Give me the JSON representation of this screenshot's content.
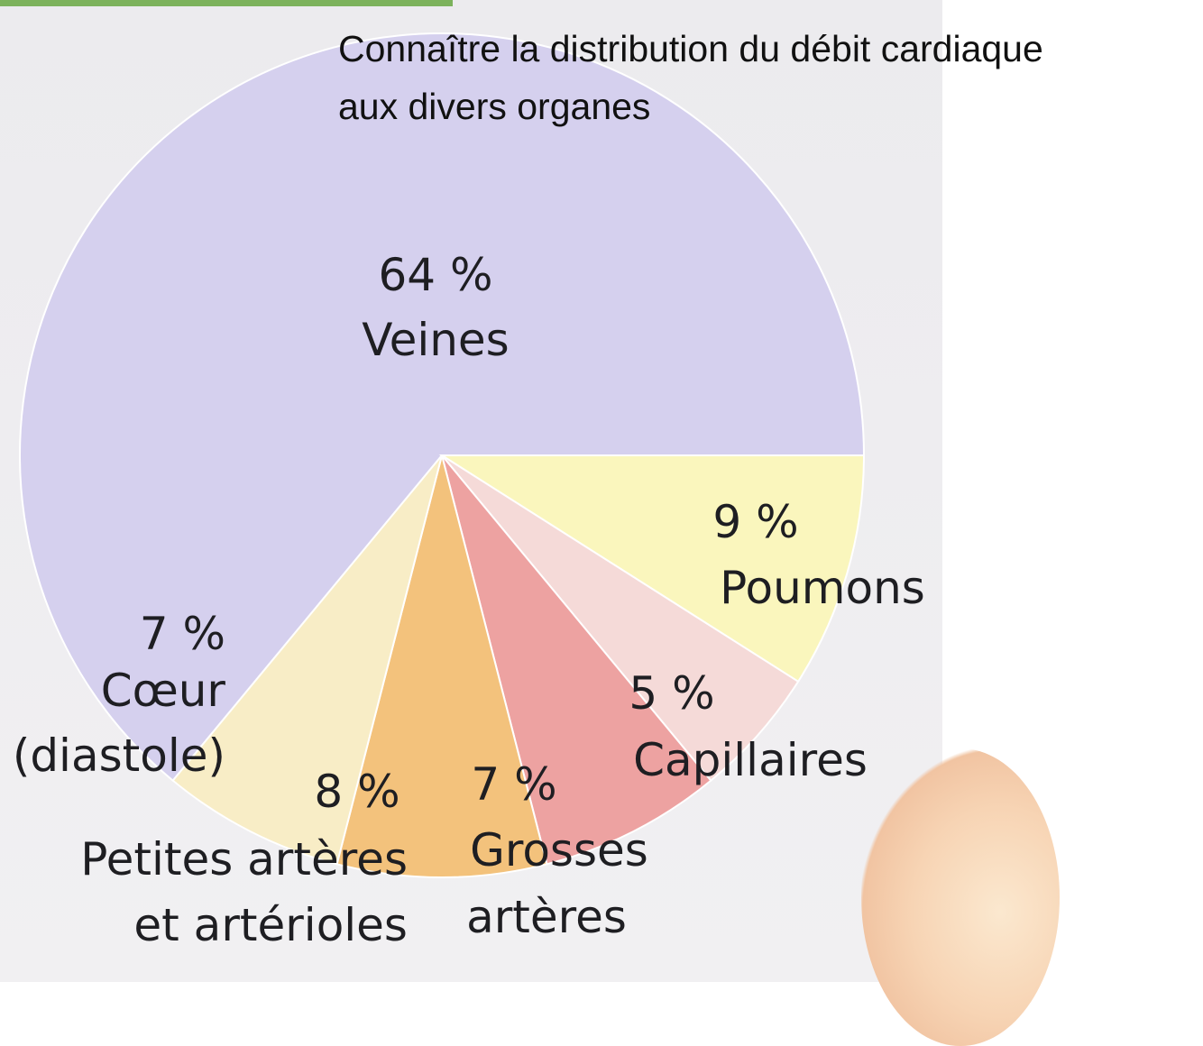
{
  "title": "Connaître la distribution du débit cardiaque\naux divers organes",
  "chart_data": {
    "type": "pie",
    "slices": [
      {
        "label": "Veines",
        "value": 64,
        "percent_text": "64 %",
        "color": "#d5d0ee"
      },
      {
        "label": "Poumons",
        "value": 9,
        "percent_text": "9 %",
        "color": "#faf6bd"
      },
      {
        "label": "Capillaires",
        "value": 5,
        "percent_text": "5 %",
        "color": "#f5dad8"
      },
      {
        "label": "Grosses artères",
        "value": 7,
        "percent_text": "7 %",
        "color": "#eda2a1"
      },
      {
        "label": "Petites artères et artérioles",
        "value": 8,
        "percent_text": "8 %",
        "color": "#f3c27c"
      },
      {
        "label": "Cœur (diastole)",
        "value": 7,
        "percent_text": "7 %",
        "color": "#f8edc6"
      }
    ]
  }
}
